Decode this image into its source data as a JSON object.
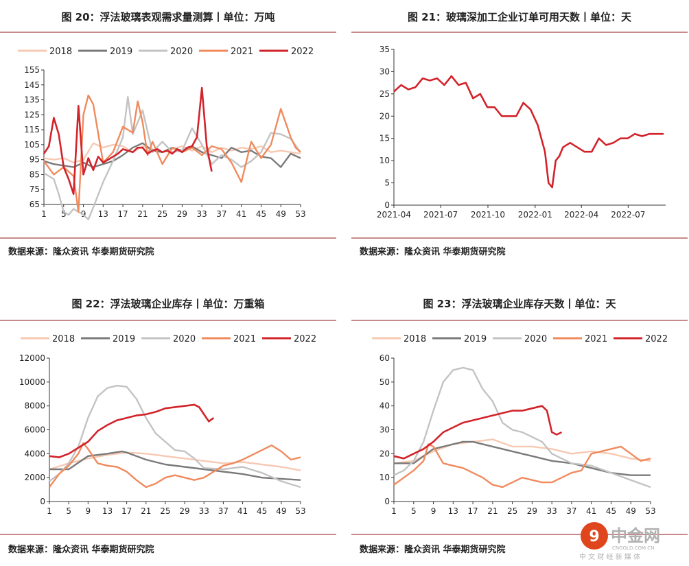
{
  "panels": [
    {
      "title": "图 20：浮法玻璃表观需求量测算丨单位：万吨",
      "source": "数据来源：隆众资讯 华泰期货研究院"
    },
    {
      "title": "图 21：玻璃深加工企业订单可用天数丨单位：天",
      "source": "数据来源：隆众资讯 华泰期货研究院"
    },
    {
      "title": "图 22：浮法玻璃企业库存丨单位：万重箱",
      "source": "数据来源：隆众资讯 华泰期货研究院"
    },
    {
      "title": "图 23：浮法玻璃企业库存天数丨单位：天",
      "source": "数据来源：隆众资讯 华泰期货研究院"
    }
  ],
  "colors": {
    "2018": "#f7c9b3",
    "2019": "#7a7a7a",
    "2020": "#c3c3c3",
    "2021": "#f08a5d",
    "2022": "#d2232a",
    "rule": "#c9898a"
  },
  "logo": {
    "name": "中金网",
    "domain": "CNGOLD.COM.CN",
    "tagline": "中 文 财 经 新 媒 体"
  },
  "chart_data": [
    {
      "type": "line",
      "ylim": [
        65,
        155
      ],
      "yticks": [
        65,
        75,
        85,
        95,
        105,
        115,
        125,
        135,
        145,
        155
      ],
      "xticks": [
        "1",
        "5",
        "9",
        "13",
        "17",
        "21",
        "25",
        "29",
        "33",
        "37",
        "41",
        "45",
        "49",
        "53"
      ],
      "legend": "top",
      "series": [
        {
          "name": "2018",
          "x": [
            1,
            3,
            5,
            7,
            9,
            11,
            13,
            15,
            17,
            19,
            21,
            23,
            25,
            27,
            29,
            31,
            33,
            35,
            37,
            39,
            41,
            43,
            45,
            47,
            49,
            51,
            53
          ],
          "values": [
            96,
            95,
            96,
            93,
            95,
            106,
            103,
            105,
            104,
            100,
            104,
            102,
            100,
            102,
            104,
            101,
            104,
            100,
            103,
            101,
            103,
            102,
            104,
            100,
            101,
            100,
            99
          ]
        },
        {
          "name": "2019",
          "x": [
            1,
            3,
            5,
            7,
            9,
            11,
            13,
            15,
            17,
            19,
            21,
            23,
            25,
            27,
            29,
            31,
            33,
            35,
            37,
            39,
            41,
            43,
            45,
            47,
            49,
            51,
            53
          ],
          "values": [
            94,
            92,
            91,
            90,
            93,
            90,
            92,
            94,
            98,
            103,
            106,
            101,
            100,
            103,
            101,
            104,
            100,
            98,
            96,
            103,
            100,
            101,
            97,
            96,
            90,
            99,
            96
          ]
        },
        {
          "name": "2020",
          "x": [
            1,
            3,
            4,
            5,
            6,
            7,
            8,
            9,
            10,
            11,
            13,
            15,
            17,
            18,
            19,
            21,
            23,
            25,
            27,
            29,
            31,
            33,
            35,
            37,
            39,
            41,
            43,
            45,
            47,
            49,
            51,
            53
          ],
          "values": [
            86,
            82,
            72,
            60,
            58,
            62,
            60,
            58,
            55,
            63,
            80,
            94,
            110,
            137,
            112,
            128,
            100,
            107,
            100,
            101,
            116,
            105,
            92,
            98,
            95,
            90,
            94,
            100,
            113,
            112,
            109,
            100
          ]
        },
        {
          "name": "2021",
          "x": [
            1,
            3,
            5,
            7,
            8,
            9,
            10,
            11,
            13,
            15,
            17,
            19,
            20,
            21,
            22,
            23,
            25,
            27,
            29,
            31,
            33,
            35,
            37,
            39,
            41,
            43,
            45,
            47,
            49,
            51,
            52,
            53
          ],
          "values": [
            94,
            85,
            90,
            84,
            60,
            125,
            138,
            132,
            93,
            100,
            117,
            113,
            134,
            120,
            98,
            107,
            92,
            103,
            100,
            103,
            98,
            104,
            102,
            93,
            80,
            107,
            96,
            105,
            129,
            110,
            103,
            100
          ]
        },
        {
          "name": "2022",
          "x": [
            1,
            2,
            3,
            4,
            5,
            6,
            7,
            8,
            9,
            10,
            11,
            12,
            13,
            14,
            15,
            16,
            17,
            18,
            19,
            20,
            21,
            22,
            23,
            24,
            25,
            26,
            27,
            28,
            29,
            30,
            31,
            32,
            33,
            34,
            35
          ],
          "values": [
            99,
            104,
            123,
            112,
            90,
            82,
            72,
            131,
            85,
            96,
            88,
            97,
            93,
            95,
            97,
            99,
            102,
            101,
            100,
            103,
            103,
            99,
            101,
            102,
            100,
            101,
            99,
            102,
            100,
            103,
            104,
            110,
            143,
            104,
            87
          ]
        }
      ]
    },
    {
      "type": "line",
      "ylim": [
        0,
        35
      ],
      "yticks": [
        0,
        5,
        10,
        15,
        20,
        25,
        30,
        35
      ],
      "xticks": [
        "2021-04",
        "2021-07",
        "2021-10",
        "2022-01",
        "2022-04",
        "2022-07"
      ],
      "series": [
        {
          "name": "2022",
          "x": [
            "2021-04-01",
            "2021-04-15",
            "2021-04-29",
            "2021-05-13",
            "2021-05-27",
            "2021-06-10",
            "2021-06-24",
            "2021-07-08",
            "2021-07-22",
            "2021-08-05",
            "2021-08-19",
            "2021-09-02",
            "2021-09-16",
            "2021-09-30",
            "2021-10-14",
            "2021-10-28",
            "2021-11-11",
            "2021-11-25",
            "2021-12-09",
            "2021-12-23",
            "2022-01-06",
            "2022-01-13",
            "2022-01-20",
            "2022-01-27",
            "2022-02-03",
            "2022-02-10",
            "2022-02-17",
            "2022-02-24",
            "2022-03-10",
            "2022-03-24",
            "2022-04-07",
            "2022-04-21",
            "2022-05-05",
            "2022-05-19",
            "2022-06-02",
            "2022-06-16",
            "2022-06-30",
            "2022-07-14",
            "2022-07-28",
            "2022-08-11",
            "2022-08-25",
            "2022-09-08"
          ],
          "values": [
            25.5,
            27,
            26,
            26.5,
            28.5,
            28,
            28.5,
            27,
            29,
            27,
            27.5,
            24,
            25,
            22,
            22,
            20,
            20,
            20,
            23,
            21.5,
            18,
            15,
            12,
            5,
            4,
            10,
            11,
            13,
            14,
            13,
            12,
            12,
            15,
            13.5,
            14,
            15,
            15,
            16,
            15.5,
            16,
            16,
            16
          ]
        }
      ]
    },
    {
      "type": "line",
      "ylim": [
        0,
        12000
      ],
      "yticks": [
        0,
        2000,
        4000,
        6000,
        8000,
        10000,
        12000
      ],
      "xticks": [
        "1",
        "5",
        "9",
        "13",
        "17",
        "21",
        "25",
        "29",
        "33",
        "37",
        "41",
        "45",
        "49",
        "53"
      ],
      "legend": "top",
      "series": [
        {
          "name": "2018",
          "x": [
            1,
            5,
            9,
            13,
            17,
            21,
            25,
            29,
            33,
            37,
            41,
            45,
            49,
            53
          ],
          "values": [
            2700,
            3200,
            3600,
            3900,
            4100,
            4000,
            3800,
            3600,
            3400,
            3200,
            3300,
            3100,
            2900,
            2600
          ]
        },
        {
          "name": "2019",
          "x": [
            1,
            5,
            9,
            13,
            16,
            17,
            21,
            25,
            29,
            33,
            37,
            41,
            45,
            49,
            53
          ],
          "values": [
            2700,
            2700,
            3800,
            4000,
            4200,
            4100,
            3500,
            3100,
            2900,
            2700,
            2500,
            2300,
            2000,
            1900,
            1800
          ]
        },
        {
          "name": "2020",
          "x": [
            1,
            3,
            5,
            7,
            9,
            11,
            13,
            15,
            17,
            19,
            21,
            23,
            25,
            27,
            29,
            31,
            33,
            37,
            41,
            45,
            49,
            53
          ],
          "values": [
            1700,
            2300,
            3200,
            4600,
            7000,
            8800,
            9500,
            9700,
            9600,
            8600,
            7000,
            5700,
            5000,
            4300,
            4200,
            3600,
            2800,
            2700,
            2900,
            2400,
            1700,
            1200
          ]
        },
        {
          "name": "2021",
          "x": [
            1,
            3,
            5,
            7,
            8,
            9,
            11,
            13,
            15,
            17,
            19,
            21,
            23,
            25,
            27,
            29,
            31,
            33,
            35,
            37,
            39,
            41,
            43,
            45,
            47,
            49,
            51,
            53
          ],
          "values": [
            1200,
            2300,
            3000,
            4000,
            4900,
            4400,
            3200,
            3000,
            2900,
            2500,
            1800,
            1200,
            1500,
            2000,
            2200,
            2000,
            1800,
            2000,
            2500,
            3000,
            3200,
            3500,
            3900,
            4300,
            4700,
            4200,
            3500,
            3700
          ]
        },
        {
          "name": "2022",
          "x": [
            1,
            3,
            5,
            7,
            9,
            11,
            13,
            15,
            17,
            19,
            21,
            23,
            25,
            27,
            29,
            31,
            32,
            33,
            34,
            35
          ],
          "values": [
            3800,
            3700,
            4000,
            4500,
            5000,
            5900,
            6400,
            6800,
            7000,
            7200,
            7300,
            7500,
            7800,
            7900,
            8000,
            8100,
            7900,
            7300,
            6700,
            7000
          ]
        }
      ]
    },
    {
      "type": "line",
      "ylim": [
        0,
        60
      ],
      "yticks": [
        0,
        10,
        20,
        30,
        40,
        50,
        60
      ],
      "xticks": [
        "1",
        "5",
        "9",
        "13",
        "17",
        "21",
        "25",
        "29",
        "33",
        "37",
        "41",
        "45",
        "49",
        "53"
      ],
      "legend": "top",
      "series": [
        {
          "name": "2018",
          "x": [
            1,
            5,
            9,
            13,
            17,
            21,
            25,
            29,
            33,
            37,
            41,
            45,
            49,
            53
          ],
          "values": [
            16,
            17,
            21,
            24,
            25,
            26,
            23,
            23,
            22,
            20,
            21,
            20,
            18,
            17
          ]
        },
        {
          "name": "2019",
          "x": [
            1,
            5,
            9,
            13,
            15,
            17,
            21,
            25,
            29,
            33,
            37,
            41,
            45,
            49,
            53
          ],
          "values": [
            16,
            16,
            22,
            24,
            25,
            25,
            23,
            21,
            19,
            17,
            16,
            14,
            12,
            11,
            11
          ]
        },
        {
          "name": "2020",
          "x": [
            1,
            3,
            5,
            7,
            9,
            11,
            13,
            15,
            17,
            19,
            21,
            23,
            25,
            27,
            29,
            31,
            33,
            37,
            41,
            45,
            49,
            53
          ],
          "values": [
            11,
            13,
            17,
            25,
            38,
            50,
            55,
            56,
            55,
            47,
            42,
            33,
            30,
            29,
            27,
            25,
            20,
            16,
            15,
            12,
            9,
            6
          ]
        },
        {
          "name": "2021",
          "x": [
            1,
            3,
            5,
            7,
            8,
            9,
            11,
            13,
            15,
            17,
            19,
            21,
            23,
            25,
            27,
            29,
            31,
            33,
            35,
            37,
            39,
            41,
            43,
            45,
            47,
            49,
            51,
            53
          ],
          "values": [
            7,
            10,
            13,
            17,
            24,
            23,
            16,
            15,
            14,
            12,
            10,
            7,
            6,
            8,
            10,
            9,
            8,
            8,
            10,
            12,
            13,
            20,
            21,
            22,
            23,
            20,
            17,
            18
          ]
        },
        {
          "name": "2022",
          "x": [
            1,
            3,
            5,
            7,
            9,
            11,
            13,
            15,
            17,
            19,
            21,
            23,
            25,
            27,
            29,
            31,
            32,
            33,
            34,
            35
          ],
          "values": [
            19,
            18,
            20,
            22,
            25,
            29,
            31,
            33,
            34,
            35,
            36,
            37,
            38,
            38,
            39,
            40,
            38,
            29,
            28,
            29
          ]
        }
      ]
    }
  ]
}
